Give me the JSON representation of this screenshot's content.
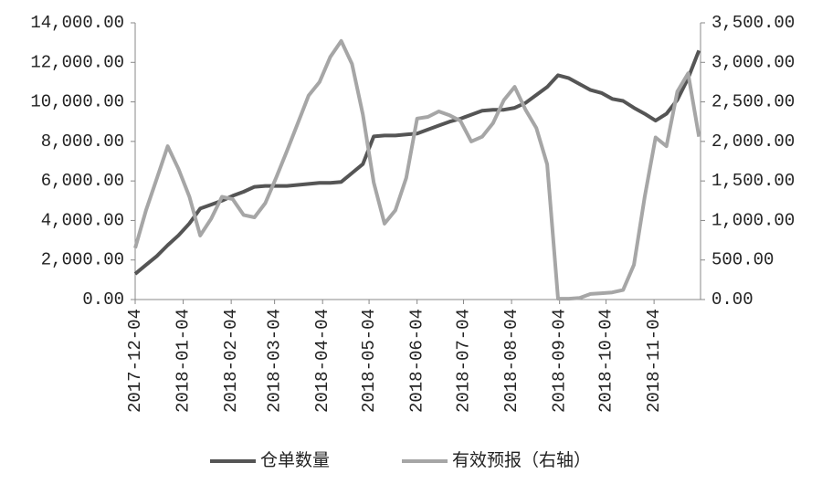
{
  "chart_data": {
    "type": "line",
    "x": [
      "2017-12-04",
      "2017-12-11",
      "2017-12-18",
      "2017-12-25",
      "2018-01-01",
      "2018-01-08",
      "2018-01-15",
      "2018-01-22",
      "2018-01-29",
      "2018-02-05",
      "2018-02-12",
      "2018-02-19",
      "2018-02-26",
      "2018-03-05",
      "2018-03-12",
      "2018-03-19",
      "2018-03-26",
      "2018-04-02",
      "2018-04-09",
      "2018-04-16",
      "2018-04-23",
      "2018-04-30",
      "2018-05-07",
      "2018-05-14",
      "2018-05-21",
      "2018-05-28",
      "2018-06-04",
      "2018-06-11",
      "2018-06-18",
      "2018-06-25",
      "2018-07-02",
      "2018-07-09",
      "2018-07-16",
      "2018-07-23",
      "2018-07-30",
      "2018-08-06",
      "2018-08-13",
      "2018-08-20",
      "2018-08-27",
      "2018-09-03",
      "2018-09-10",
      "2018-09-17",
      "2018-09-24",
      "2018-10-01",
      "2018-10-08",
      "2018-10-15",
      "2018-10-22",
      "2018-10-29",
      "2018-11-05",
      "2018-11-12",
      "2018-11-19",
      "2018-11-26",
      "2018-12-03"
    ],
    "series": [
      {
        "name": "仓单数量",
        "color": "#555555",
        "values": [
          1300,
          1750,
          2200,
          2750,
          3250,
          3850,
          4600,
          4800,
          5000,
          5250,
          5450,
          5700,
          5750,
          5750,
          5750,
          5800,
          5850,
          5900,
          5900,
          5950,
          6400,
          6850,
          8250,
          8300,
          8300,
          8350,
          8400,
          8600,
          8800,
          9000,
          9150,
          9350,
          9550,
          9600,
          9600,
          9700,
          9950,
          10350,
          10750,
          11350,
          11200,
          10900,
          10600,
          10450,
          10150,
          10050,
          9700,
          9400,
          9050,
          9400,
          10100,
          11200,
          12600
        ]
      },
      {
        "name": "有效预报（右轴）",
        "color": "#a6a6a6",
        "axis": "y2",
        "values": [
          650,
          1130,
          1530,
          1940,
          1650,
          1300,
          810,
          1020,
          1300,
          1270,
          1070,
          1040,
          1220,
          1540,
          1880,
          2230,
          2580,
          2750,
          3070,
          3270,
          2980,
          2340,
          1480,
          960,
          1130,
          1540,
          2290,
          2310,
          2380,
          2330,
          2260,
          2000,
          2060,
          2230,
          2520,
          2690,
          2400,
          2170,
          1710,
          10,
          10,
          20,
          70,
          80,
          90,
          120,
          440,
          1300,
          2050,
          1940,
          2630,
          2860,
          2060
        ]
      }
    ],
    "xlim": [
      "2017-12-04",
      "2018-12-04"
    ],
    "xticks": [
      "2017-12-04",
      "2018-01-04",
      "2018-02-04",
      "2018-03-04",
      "2018-04-04",
      "2018-05-04",
      "2018-06-04",
      "2018-07-04",
      "2018-08-04",
      "2018-09-04",
      "2018-10-04",
      "2018-11-04"
    ],
    "ylim": [
      0,
      14000
    ],
    "yticks": [
      {
        "value": 0,
        "label": "0.00"
      },
      {
        "value": 2000,
        "label": "2,000.00"
      },
      {
        "value": 4000,
        "label": "4,000.00"
      },
      {
        "value": 6000,
        "label": "6,000.00"
      },
      {
        "value": 8000,
        "label": "8,000.00"
      },
      {
        "value": 10000,
        "label": "10,000.00"
      },
      {
        "value": 12000,
        "label": "12,000.00"
      },
      {
        "value": 14000,
        "label": "14,000.00"
      }
    ],
    "y2lim": [
      0,
      3500
    ],
    "y2ticks": [
      {
        "value": 0,
        "label": "0.00"
      },
      {
        "value": 500,
        "label": "500.00"
      },
      {
        "value": 1000,
        "label": "1,000.00"
      },
      {
        "value": 1500,
        "label": "1,500.00"
      },
      {
        "value": 2000,
        "label": "2,000.00"
      },
      {
        "value": 2500,
        "label": "2,500.00"
      },
      {
        "value": 3000,
        "label": "3,000.00"
      },
      {
        "value": 3500,
        "label": "3,500.00"
      }
    ],
    "grid": false,
    "legend": "bottom"
  }
}
